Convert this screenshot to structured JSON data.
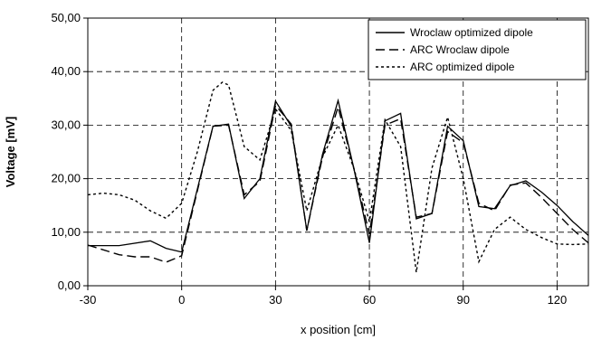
{
  "chart_data": {
    "type": "line",
    "xlabel": "x position [cm]",
    "ylabel": "Voltage [mV]",
    "xlim": [
      -30,
      130
    ],
    "ylim": [
      0,
      50
    ],
    "xticks": [
      -30,
      0,
      30,
      60,
      90,
      120
    ],
    "xtick_labels": [
      "-30",
      "0",
      "30",
      "60",
      "90",
      "120"
    ],
    "yticks": [
      0,
      10,
      20,
      30,
      40,
      50
    ],
    "ytick_labels": [
      "0,00",
      "10,00",
      "20,00",
      "30,00",
      "40,00",
      "50,00"
    ],
    "grid": true,
    "legend_position": "top-right",
    "series": [
      {
        "name": "Wroclaw optimized dipole",
        "style": "solid",
        "color": "#000000",
        "x": [
          -30,
          -20,
          -10,
          -5,
          0,
          10,
          15,
          20,
          25,
          30,
          35,
          40,
          45,
          50,
          55,
          60,
          65,
          70,
          75,
          80,
          85,
          90,
          95,
          100,
          105,
          110,
          115,
          120,
          125,
          130
        ],
        "y": [
          7.5,
          7.5,
          8.4,
          7.0,
          6.3,
          29.8,
          30.2,
          16.3,
          20.0,
          34.5,
          29.8,
          10.3,
          24.5,
          34.6,
          22.0,
          8.0,
          30.8,
          32.2,
          12.5,
          13.5,
          29.8,
          27.1,
          14.8,
          14.4,
          18.7,
          19.6,
          17.5,
          15.0,
          12.0,
          9.4
        ]
      },
      {
        "name": "ARC Wroclaw dipole",
        "style": "dashed",
        "color": "#000000",
        "x": [
          -30,
          -20,
          -15,
          -10,
          -5,
          0,
          10,
          15,
          20,
          25,
          30,
          35,
          40,
          45,
          50,
          55,
          60,
          65,
          70,
          75,
          80,
          85,
          90,
          95,
          100,
          105,
          110,
          115,
          120,
          125,
          130
        ],
        "y": [
          7.6,
          5.8,
          5.4,
          5.4,
          4.4,
          5.6,
          29.8,
          30.0,
          17.0,
          19.5,
          33.7,
          30.2,
          10.3,
          24.0,
          33.4,
          22.0,
          9.6,
          30.0,
          31.2,
          12.8,
          13.5,
          28.8,
          26.7,
          15.4,
          14.0,
          18.8,
          19.2,
          16.5,
          13.5,
          10.5,
          8.0
        ]
      },
      {
        "name": "ARC optimized dipole",
        "style": "dotted",
        "color": "#000000",
        "x": [
          -30,
          -25,
          -20,
          -15,
          -10,
          -5,
          0,
          5,
          10,
          13,
          15,
          20,
          25,
          30,
          35,
          40,
          45,
          50,
          55,
          60,
          65,
          70,
          75,
          80,
          85,
          90,
          95,
          100,
          105,
          110,
          115,
          120,
          125,
          130
        ],
        "y": [
          17.0,
          17.3,
          17.0,
          16.0,
          14.0,
          12.6,
          15.4,
          25.0,
          36.5,
          38.0,
          37.5,
          26.0,
          23.5,
          33.0,
          29.0,
          14.0,
          24.0,
          30.0,
          22.0,
          12.0,
          31.0,
          26.0,
          2.5,
          22.0,
          31.5,
          20.0,
          4.5,
          10.5,
          12.8,
          10.5,
          9.0,
          7.8,
          7.7,
          7.8
        ]
      }
    ]
  }
}
